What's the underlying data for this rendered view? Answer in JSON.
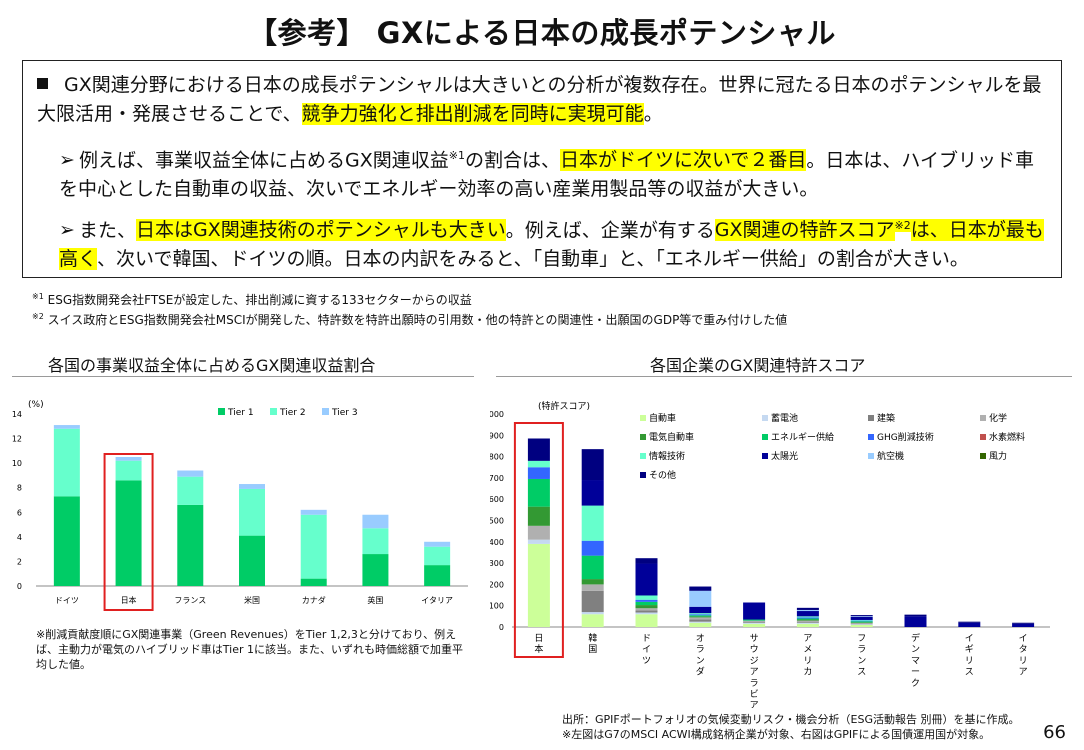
{
  "title": "【参考】 GXによる日本の成長ポテンシャル",
  "box": {
    "p1_a": "GX関連分野における日本の成長ポテンシャルは大きいとの分析が複数存在。世界に冠たる日本のポテンシャルを最大限活用・発展させることで、",
    "p1_hl": "競争力強化と排出削減を同時に実現可能",
    "p1_b": "。",
    "p2_a": "例えば、事業収益全体に占めるGX関連収益",
    "p2_sup": "※1",
    "p2_b": "の割合は、",
    "p2_hl": "日本がドイツに次いで２番目",
    "p2_c": "。日本は、ハイブリッド車を中心とした自動車の収益、次いでエネルギー効率の高い産業用製品等の収益が大きい。",
    "p3_a": "また、",
    "p3_hl1": "日本はGX関連技術のポテンシャルも大きい",
    "p3_b": "。例えば、企業が有する",
    "p3_hl2": "GX関連の特許スコア",
    "p3_sup": "※2",
    "p3_hl3": "は、日本が最も高く",
    "p3_c": "、次いで韓国、ドイツの順。日本の内訳をみると、「自動車」と、「エネルギー供給」の割合が大きい。"
  },
  "notes": {
    "n1_mark": "※1",
    "n1": "ESG指数開発会社FTSEが設定した、排出削減に資する133セクターからの収益",
    "n2_mark": "※2",
    "n2": "スイス政府とESG指数開発会社MSCIが開発した、特許数を特許出願時の引用数・他の特許との関連性・出願国のGDP等で重み付けした値"
  },
  "left_title": "各国の事業収益全体に占めるGX関連収益割合",
  "right_title": "各国企業のGX関連特許スコア",
  "left_note": "※削減貢献度順にGX関連事業（Green Revenues）をTier 1,2,3と分けており、例えば、主動力が電気のハイブリッド車はTier 1に該当。また、いずれも時価総額で加重平均した値。",
  "source1": "出所：GPIFポートフォリオの気候変動リスク・機会分析（ESG活動報告 別冊）を基に作成。",
  "source2": "※左図はG7のMSCI ACWI構成銘柄企業が対象、右図はGPIFによる国債運用国が対象。",
  "page_number": "66",
  "colors": {
    "highlight": "#ffff00",
    "tier1": "#00cc66",
    "tier2": "#66ffcc",
    "tier3": "#99ccff",
    "frame": "#e02020"
  },
  "chart_data": [
    {
      "type": "bar",
      "stacked": true,
      "ylabel": "(%)",
      "ylim": [
        0,
        14
      ],
      "yticks": [
        "0",
        "2",
        "4",
        "6",
        "8",
        "10",
        "12",
        "14"
      ],
      "categories": [
        "ドイツ",
        "日本",
        "フランス",
        "米国",
        "カナダ",
        "英国",
        "イタリア"
      ],
      "series": [
        {
          "name": "Tier 1",
          "color": "#00cc66",
          "values": [
            7.3,
            8.6,
            6.6,
            4.1,
            0.6,
            2.6,
            1.7
          ]
        },
        {
          "name": "Tier 2",
          "color": "#66ffcc",
          "values": [
            5.5,
            1.6,
            2.3,
            3.8,
            5.2,
            2.1,
            1.5
          ]
        },
        {
          "name": "Tier 3",
          "color": "#99ccff",
          "values": [
            0.3,
            0.3,
            0.5,
            0.4,
            0.4,
            1.1,
            0.4
          ]
        }
      ],
      "highlight_category": "日本",
      "legend": "top"
    },
    {
      "type": "bar",
      "stacked": true,
      "ylabel": "(特許スコア)",
      "ylim": [
        0,
        1000
      ],
      "yticks": [
        "0",
        "100",
        "200",
        "300",
        "400",
        "500",
        "600",
        "700",
        "800",
        "900",
        "1,000"
      ],
      "categories": [
        "日本",
        "韓国",
        "ドイツ",
        "オランダ",
        "サウジアラビア",
        "アメリカ",
        "フランス",
        "デンマーク",
        "イギリス",
        "イタリア"
      ],
      "series": [
        {
          "name": "自動車",
          "color": "#ccff99",
          "values": [
            390,
            60,
            60,
            20,
            15,
            15,
            10,
            0,
            0,
            0
          ]
        },
        {
          "name": "蓄電池",
          "color": "#c5d9f1",
          "values": [
            20,
            10,
            8,
            5,
            5,
            5,
            3,
            0,
            0,
            0
          ]
        },
        {
          "name": "建築",
          "color": "#808080",
          "values": [
            0,
            100,
            10,
            10,
            5,
            5,
            3,
            0,
            0,
            0
          ]
        },
        {
          "name": "化学",
          "color": "#b0b0b0",
          "values": [
            65,
            30,
            10,
            10,
            5,
            5,
            3,
            0,
            0,
            0
          ]
        },
        {
          "name": "電気自動車",
          "color": "#339933",
          "values": [
            90,
            25,
            15,
            5,
            0,
            5,
            3,
            0,
            0,
            0
          ]
        },
        {
          "name": "エネルギー供給",
          "color": "#00cc66",
          "values": [
            130,
            110,
            15,
            5,
            5,
            5,
            5,
            0,
            0,
            0
          ]
        },
        {
          "name": "GHG削減技術",
          "color": "#3366ff",
          "values": [
            55,
            70,
            10,
            5,
            0,
            5,
            3,
            0,
            0,
            0
          ]
        },
        {
          "name": "水素燃料",
          "color": "#c0504d",
          "values": [
            0,
            0,
            0,
            0,
            0,
            0,
            0,
            0,
            0,
            0
          ]
        },
        {
          "name": "情報技術",
          "color": "#66ffcc",
          "values": [
            30,
            165,
            20,
            5,
            0,
            5,
            3,
            0,
            0,
            0
          ]
        },
        {
          "name": "太陽光",
          "color": "#000099",
          "values": [
            0,
            120,
            150,
            30,
            80,
            25,
            15,
            50,
            20,
            15
          ]
        },
        {
          "name": "航空機",
          "color": "#99ccff",
          "values": [
            0,
            0,
            0,
            75,
            0,
            5,
            3,
            0,
            0,
            0
          ]
        },
        {
          "name": "風力",
          "color": "#336600",
          "values": [
            0,
            0,
            0,
            0,
            0,
            0,
            0,
            0,
            0,
            0
          ]
        },
        {
          "name": "その他",
          "color": "#000080",
          "values": [
            105,
            145,
            25,
            20,
            0,
            10,
            5,
            8,
            5,
            5
          ]
        }
      ],
      "highlight_category": "日本",
      "legend": "top-right"
    }
  ]
}
